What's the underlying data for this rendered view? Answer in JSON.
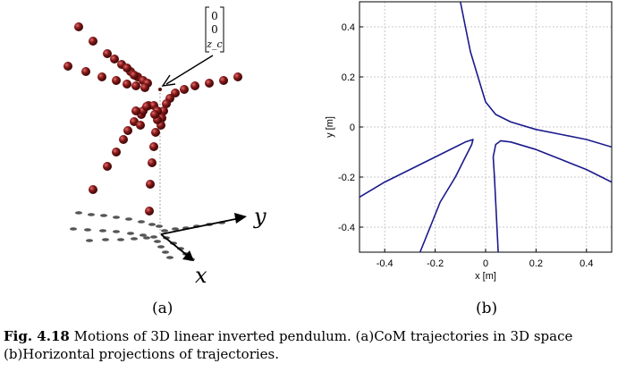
{
  "panel_a": {
    "sublabel": "(a)",
    "axis_y_label": "y",
    "axis_x_label": "x",
    "vector_entries": [
      "0",
      "0",
      "z_c"
    ]
  },
  "panel_b": {
    "sublabel": "(b)"
  },
  "caption": {
    "fig_label": "Fig. 4.18",
    "text": "Motions of 3D linear inverted pendulum. (a)CoM trajectories in 3D space (b)Horizontal projections of trajectories."
  },
  "colors": {
    "trajectory_line": "#1a1a8c",
    "ball": "#8b1a1a",
    "shadow": "#555555",
    "grid": "#c8c8c8"
  },
  "chart_data": {
    "type": "line",
    "xlabel": "x [m]",
    "ylabel": "y [m]",
    "xlim": [
      -0.5,
      0.5
    ],
    "ylim": [
      -0.5,
      0.5
    ],
    "xticks": [
      "-0.4",
      "-0.2",
      "0",
      "0.2",
      "0.4"
    ],
    "yticks": [
      "0.4",
      "0.2",
      "0",
      "-0.2",
      "-0.4"
    ],
    "grid": true,
    "series": [
      {
        "values": [
          [
            -0.1,
            0.5
          ],
          [
            -0.08,
            0.4
          ],
          [
            -0.06,
            0.3
          ],
          [
            -0.03,
            0.2
          ],
          [
            0.0,
            0.1
          ],
          [
            0.04,
            0.05
          ],
          [
            0.1,
            0.02
          ],
          [
            0.2,
            -0.01
          ],
          [
            0.3,
            -0.03
          ],
          [
            0.4,
            -0.05
          ],
          [
            0.5,
            -0.08
          ]
        ]
      },
      {
        "values": [
          [
            -0.5,
            -0.28
          ],
          [
            -0.4,
            -0.22
          ],
          [
            -0.3,
            -0.17
          ],
          [
            -0.2,
            -0.12
          ],
          [
            -0.12,
            -0.08
          ],
          [
            -0.08,
            -0.06
          ],
          [
            -0.05,
            -0.05
          ],
          [
            -0.055,
            -0.07
          ],
          [
            -0.08,
            -0.12
          ],
          [
            -0.12,
            -0.2
          ],
          [
            -0.18,
            -0.3
          ],
          [
            -0.22,
            -0.4
          ],
          [
            -0.26,
            -0.5
          ]
        ]
      },
      {
        "values": [
          [
            0.05,
            -0.5
          ],
          [
            0.045,
            -0.4
          ],
          [
            0.04,
            -0.3
          ],
          [
            0.035,
            -0.2
          ],
          [
            0.03,
            -0.12
          ],
          [
            0.04,
            -0.07
          ],
          [
            0.06,
            -0.055
          ],
          [
            0.1,
            -0.06
          ],
          [
            0.2,
            -0.09
          ],
          [
            0.3,
            -0.13
          ],
          [
            0.4,
            -0.17
          ],
          [
            0.5,
            -0.22
          ]
        ]
      }
    ]
  }
}
